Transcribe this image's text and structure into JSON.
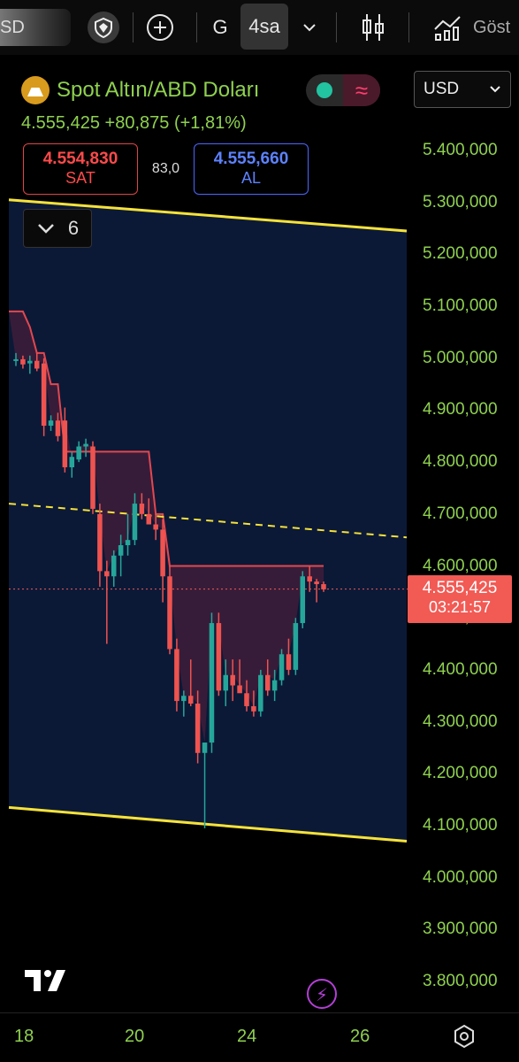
{
  "toolbar": {
    "search_text": "SD",
    "interval_day": "G",
    "interval_active": "4sa",
    "more_label": "Göst"
  },
  "symbol": {
    "title": "Spot Altın/ABD Doları",
    "price_line": "4.555,425 +80,875 (+1,81%)",
    "currency": "USD"
  },
  "trade": {
    "sell_value": "4.554,830",
    "sell_label": "SAT",
    "spread": "83,0",
    "buy_value": "4.555,660",
    "buy_label": "AL",
    "indicators_count": "6"
  },
  "price_tag": {
    "price": "4.555,425",
    "countdown": "03:21:57"
  },
  "colors": {
    "up": "#26a69a",
    "down": "#ef5350",
    "accent_green": "#8fd14f",
    "channel": "#f5e23a",
    "cloud": "#e2474f",
    "bg_panel": "#0c1a3a"
  },
  "chart_data": {
    "type": "candlestick",
    "y_tick_labels": [
      "5.400,000",
      "5.300,000",
      "5.200,000",
      "5.100,000",
      "5.000,000",
      "4.900,000",
      "4.800,000",
      "4.700,000",
      "4.600,000",
      "4.500,000",
      "4.400,000",
      "4.300,000",
      "4.200,000",
      "4.100,000",
      "4.000,000",
      "3.900,000",
      "3.800,000"
    ],
    "x_tick_labels": [
      "18",
      "20",
      "24",
      "26"
    ],
    "ylim": [
      3780,
      5450
    ],
    "last_price": 4555.425,
    "candles": [
      {
        "o": 4995,
        "h": 5010,
        "l": 4985,
        "c": 4998
      },
      {
        "o": 4998,
        "h": 5005,
        "l": 4980,
        "c": 4988
      },
      {
        "o": 4990,
        "h": 5005,
        "l": 4970,
        "c": 4995
      },
      {
        "o": 4995,
        "h": 5010,
        "l": 4975,
        "c": 4980
      },
      {
        "o": 4990,
        "h": 5000,
        "l": 4850,
        "c": 4870
      },
      {
        "o": 4870,
        "h": 4890,
        "l": 4860,
        "c": 4880
      },
      {
        "o": 4880,
        "h": 4895,
        "l": 4840,
        "c": 4850
      },
      {
        "o": 4880,
        "h": 4905,
        "l": 4780,
        "c": 4790
      },
      {
        "o": 4790,
        "h": 4820,
        "l": 4770,
        "c": 4810
      },
      {
        "o": 4805,
        "h": 4840,
        "l": 4800,
        "c": 4830
      },
      {
        "o": 4830,
        "h": 4845,
        "l": 4810,
        "c": 4835
      },
      {
        "o": 4830,
        "h": 4840,
        "l": 4700,
        "c": 4710
      },
      {
        "o": 4700,
        "h": 4720,
        "l": 4560,
        "c": 4590
      },
      {
        "o": 4590,
        "h": 4610,
        "l": 4450,
        "c": 4580
      },
      {
        "o": 4580,
        "h": 4630,
        "l": 4560,
        "c": 4620
      },
      {
        "o": 4620,
        "h": 4660,
        "l": 4580,
        "c": 4640
      },
      {
        "o": 4640,
        "h": 4700,
        "l": 4620,
        "c": 4650
      },
      {
        "o": 4650,
        "h": 4740,
        "l": 4640,
        "c": 4720
      },
      {
        "o": 4720,
        "h": 4740,
        "l": 4690,
        "c": 4700
      },
      {
        "o": 4700,
        "h": 4730,
        "l": 4690,
        "c": 4680
      },
      {
        "o": 4680,
        "h": 4700,
        "l": 4650,
        "c": 4670
      },
      {
        "o": 4670,
        "h": 4690,
        "l": 4530,
        "c": 4580
      },
      {
        "o": 4580,
        "h": 4600,
        "l": 4430,
        "c": 4440
      },
      {
        "o": 4440,
        "h": 4460,
        "l": 4320,
        "c": 4340
      },
      {
        "o": 4340,
        "h": 4360,
        "l": 4310,
        "c": 4350
      },
      {
        "o": 4350,
        "h": 4420,
        "l": 4330,
        "c": 4335
      },
      {
        "o": 4335,
        "h": 4360,
        "l": 4220,
        "c": 4240
      },
      {
        "o": 4240,
        "h": 4260,
        "l": 4095,
        "c": 4260
      },
      {
        "o": 4260,
        "h": 4510,
        "l": 4240,
        "c": 4490
      },
      {
        "o": 4490,
        "h": 4510,
        "l": 4350,
        "c": 4360
      },
      {
        "o": 4360,
        "h": 4420,
        "l": 4330,
        "c": 4390
      },
      {
        "o": 4390,
        "h": 4420,
        "l": 4340,
        "c": 4370
      },
      {
        "o": 4370,
        "h": 4420,
        "l": 4360,
        "c": 4355
      },
      {
        "o": 4355,
        "h": 4380,
        "l": 4320,
        "c": 4330
      },
      {
        "o": 4330,
        "h": 4360,
        "l": 4310,
        "c": 4320
      },
      {
        "o": 4320,
        "h": 4400,
        "l": 4310,
        "c": 4390
      },
      {
        "o": 4390,
        "h": 4420,
        "l": 4350,
        "c": 4360
      },
      {
        "o": 4360,
        "h": 4400,
        "l": 4340,
        "c": 4380
      },
      {
        "o": 4380,
        "h": 4440,
        "l": 4370,
        "c": 4430
      },
      {
        "o": 4430,
        "h": 4460,
        "l": 4390,
        "c": 4400
      },
      {
        "o": 4400,
        "h": 4500,
        "l": 4390,
        "c": 4490
      },
      {
        "o": 4490,
        "h": 4590,
        "l": 4480,
        "c": 4580
      },
      {
        "o": 4580,
        "h": 4600,
        "l": 4550,
        "c": 4570
      },
      {
        "o": 4570,
        "h": 4575,
        "l": 4530,
        "c": 4565
      },
      {
        "o": 4565,
        "h": 4570,
        "l": 4550,
        "c": 4555
      }
    ],
    "channel_upper": [
      [
        0,
        5305
      ],
      [
        45,
        5245
      ]
    ],
    "channel_lower": [
      [
        0,
        4135
      ],
      [
        45,
        4070
      ]
    ],
    "midline": [
      [
        0,
        4720
      ],
      [
        45,
        4655
      ]
    ],
    "cloud_upper": [
      5090,
      5090,
      5060,
      5010,
      5010,
      4950,
      4950,
      4820,
      4820,
      4820,
      4820,
      4820,
      4820,
      4820,
      4820,
      4820,
      4820,
      4820,
      4820,
      4820,
      4700,
      4700,
      4600,
      4600,
      4600,
      4600,
      4600,
      4600,
      4600,
      4600,
      4600,
      4600,
      4600,
      4600,
      4600,
      4600,
      4600,
      4600,
      4600,
      4600,
      4600,
      4600,
      4600,
      4600,
      4600
    ]
  }
}
